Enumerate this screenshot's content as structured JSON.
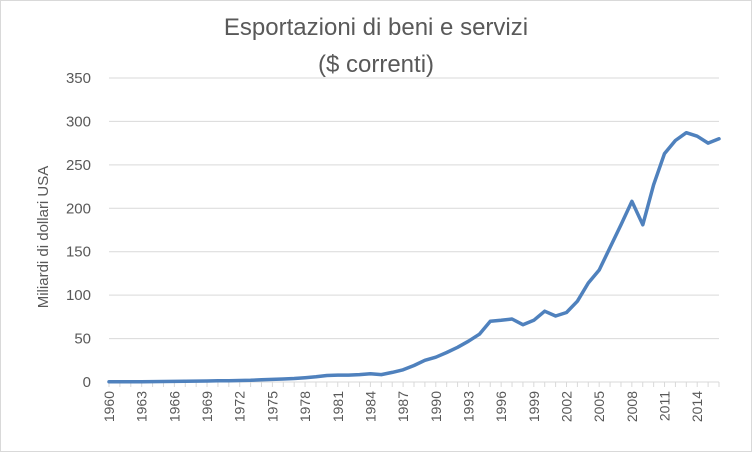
{
  "chart_data": {
    "type": "line",
    "title": "Esportazioni di beni e servizi",
    "subtitle": "($ correnti)",
    "ylabel": "Miliardi di dollari USA",
    "xlabel": "",
    "ylim": [
      0,
      350
    ],
    "y_ticks": [
      "0",
      "50",
      "100",
      "150",
      "200",
      "250",
      "300",
      "350"
    ],
    "y_tick_values": [
      0,
      50,
      100,
      150,
      200,
      250,
      300,
      350
    ],
    "x_ticks": [
      "1960",
      "1963",
      "1966",
      "1969",
      "1972",
      "1975",
      "1978",
      "1981",
      "1984",
      "1987",
      "1990",
      "1993",
      "1996",
      "1999",
      "2002",
      "2005",
      "2008",
      "2011",
      "2014"
    ],
    "x_tick_values": [
      1960,
      1963,
      1966,
      1969,
      1972,
      1975,
      1978,
      1981,
      1984,
      1987,
      1990,
      1993,
      1996,
      1999,
      2002,
      2005,
      2008,
      2011,
      2014
    ],
    "xlim": [
      1960,
      2016
    ],
    "grid": true,
    "legend": "none",
    "line_color": "#4f81bd",
    "grid_color": "#d9d9d9",
    "text_color": "#595959",
    "x": [
      1960,
      1961,
      1962,
      1963,
      1964,
      1965,
      1966,
      1967,
      1968,
      1969,
      1970,
      1971,
      1972,
      1973,
      1974,
      1975,
      1976,
      1977,
      1978,
      1979,
      1980,
      1981,
      1982,
      1983,
      1984,
      1985,
      1986,
      1987,
      1988,
      1989,
      1990,
      1991,
      1992,
      1993,
      1994,
      1995,
      1996,
      1997,
      1998,
      1999,
      2000,
      2001,
      2002,
      2003,
      2004,
      2005,
      2006,
      2007,
      2008,
      2009,
      2010,
      2011,
      2012,
      2013,
      2014,
      2015,
      2016
    ],
    "series": [
      {
        "values": [
          0.3,
          0.3,
          0.4,
          0.4,
          0.5,
          0.6,
          0.7,
          0.9,
          1.0,
          1.2,
          1.4,
          1.5,
          1.7,
          2.0,
          2.5,
          3.0,
          3.5,
          4.0,
          5.0,
          6.0,
          7.5,
          8.0,
          8.0,
          8.5,
          9.5,
          8.5,
          11.0,
          14.0,
          19.0,
          25.0,
          28.5,
          34.0,
          40.0,
          47.0,
          55.0,
          70.0,
          71.0,
          72.5,
          66.0,
          71.0,
          81.5,
          76.0,
          80.0,
          93.0,
          114.0,
          129.0,
          155.0,
          181.0,
          208.0,
          181.0,
          227.0,
          263.0,
          278.0,
          287.0,
          283.0,
          275.0,
          280.0
        ]
      }
    ]
  }
}
